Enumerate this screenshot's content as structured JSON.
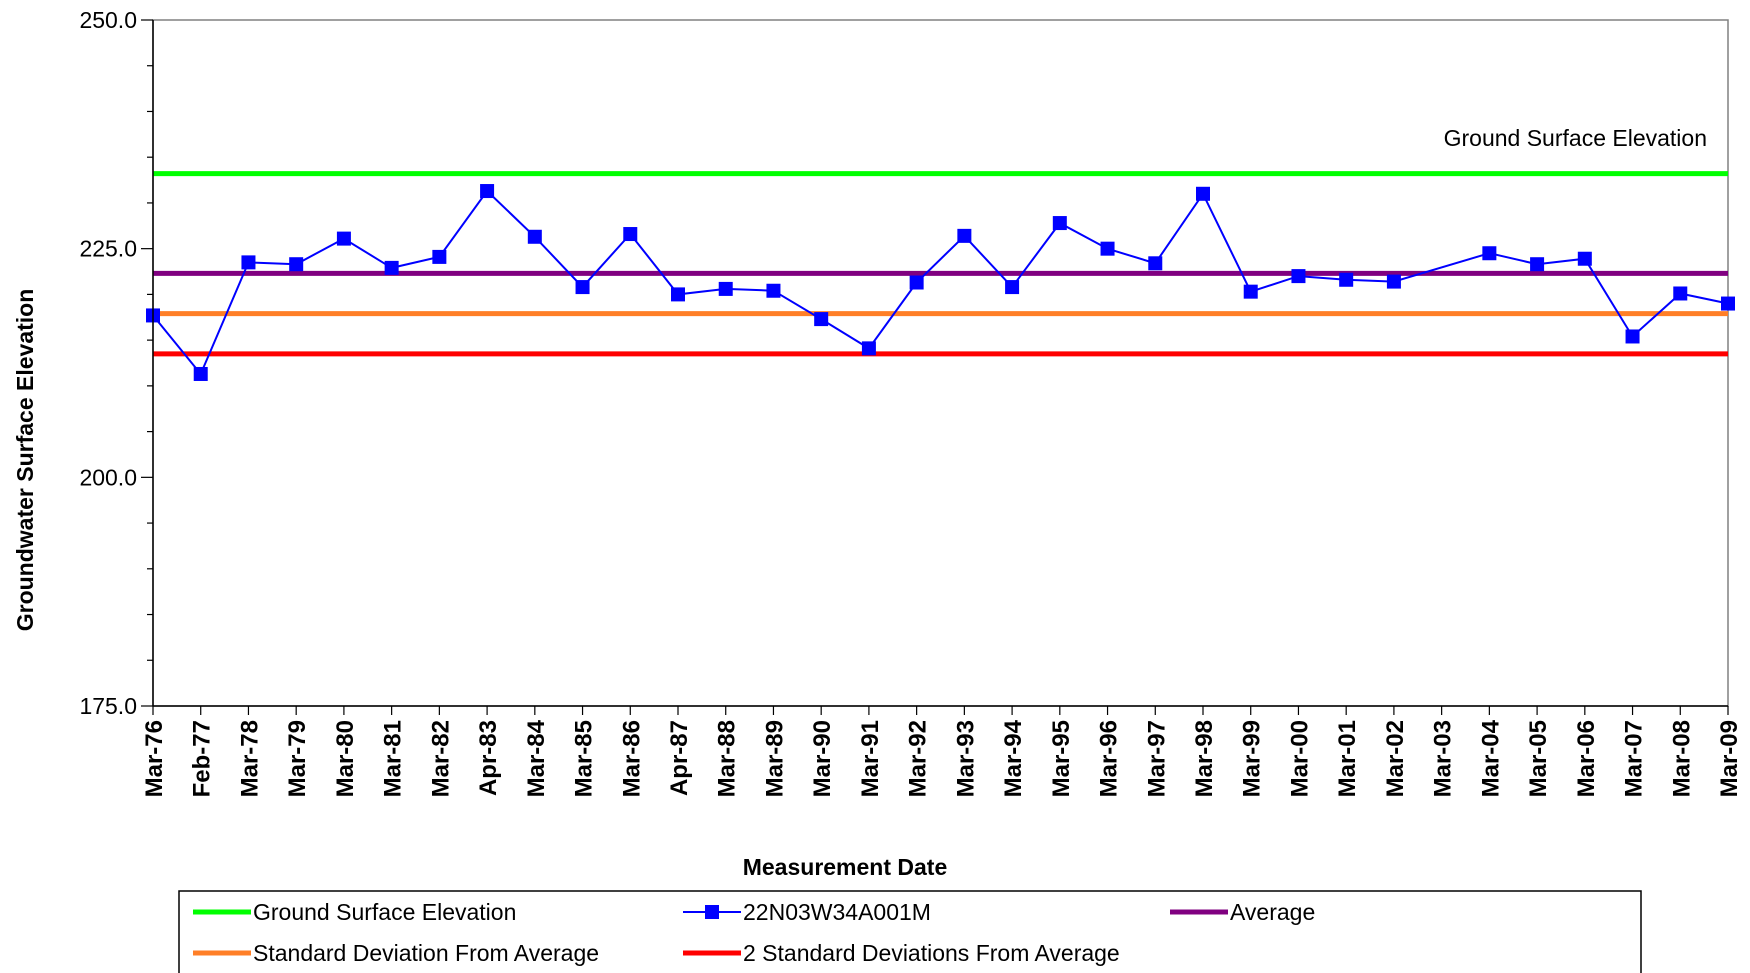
{
  "chart_data": {
    "type": "line",
    "title": "",
    "xlabel": "Measurement Date",
    "ylabel": "Groundwater Surface Elevation",
    "ylim": [
      175,
      250
    ],
    "yticks": [
      "175.0",
      "200.0",
      "225.0",
      "250.0"
    ],
    "categories": [
      "Mar-76",
      "Feb-77",
      "Mar-78",
      "Mar-79",
      "Mar-80",
      "Mar-81",
      "Mar-82",
      "Apr-83",
      "Mar-84",
      "Mar-85",
      "Mar-86",
      "Apr-87",
      "Mar-88",
      "Mar-89",
      "Mar-90",
      "Mar-91",
      "Mar-92",
      "Mar-93",
      "Mar-94",
      "Mar-95",
      "Mar-96",
      "Mar-97",
      "Mar-98",
      "Mar-99",
      "Mar-00",
      "Mar-01",
      "Mar-02",
      "Mar-03",
      "Mar-04",
      "Mar-05",
      "Mar-06",
      "Mar-07",
      "Mar-08",
      "Mar-09"
    ],
    "series": [
      {
        "name": "22N03W34A001M",
        "color": "#0000ff",
        "marker": "square",
        "values": [
          217.7,
          211.3,
          223.5,
          223.3,
          226.1,
          222.9,
          224.1,
          231.3,
          226.3,
          220.8,
          226.6,
          220.0,
          220.6,
          220.4,
          217.3,
          214.1,
          221.3,
          226.4,
          220.8,
          227.8,
          225.0,
          223.4,
          231.0,
          220.3,
          222.0,
          221.6,
          221.4,
          null,
          224.5,
          223.3,
          223.9,
          215.4,
          220.1,
          219.0
        ]
      },
      {
        "name": "Ground Surface Elevation",
        "color": "#00ff00",
        "constant": 233.2
      },
      {
        "name": "Average",
        "color": "#800080",
        "constant": 222.3
      },
      {
        "name": "Standard Deviation From Average",
        "color": "#ff7f27",
        "constant": 217.9
      },
      {
        "name": "2 Standard Deviations From Average",
        "color": "#ff0000",
        "constant": 213.5
      }
    ],
    "annotation": "Ground Surface Elevation",
    "legend": {
      "position": "bottom",
      "items": [
        {
          "label": "Ground Surface Elevation",
          "color": "#00ff00",
          "marker": "none"
        },
        {
          "label": "22N03W34A001M",
          "color": "#0000ff",
          "marker": "square"
        },
        {
          "label": "Average",
          "color": "#800080",
          "marker": "none"
        },
        {
          "label": "Standard Deviation From Average",
          "color": "#ff7f27",
          "marker": "none"
        },
        {
          "label": "2 Standard Deviations From Average",
          "color": "#ff0000",
          "marker": "none"
        }
      ]
    },
    "grid": false
  }
}
